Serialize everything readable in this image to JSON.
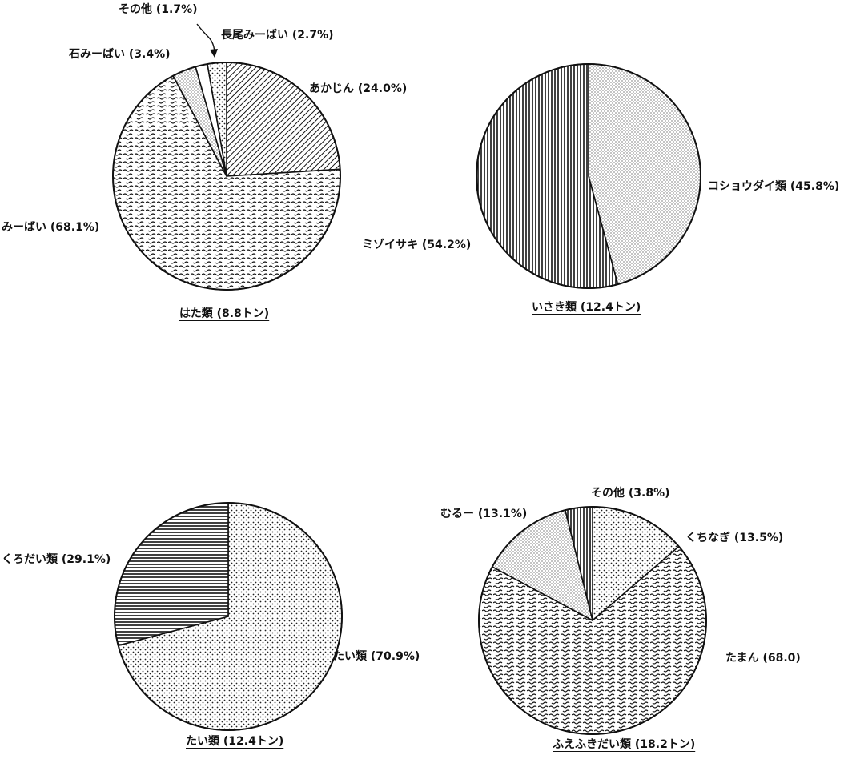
{
  "chart_data": [
    {
      "type": "pie",
      "title": "はた類 (8.8トン)",
      "slices": [
        {
          "label": "あかじん (24.0%)",
          "value": 24.0,
          "pattern": "diag"
        },
        {
          "label": "みーばい (68.1%)",
          "value": 68.1,
          "pattern": "squiggle"
        },
        {
          "label": "石みーばい (3.4%)",
          "value": 3.4,
          "pattern": "dots-fine"
        },
        {
          "label": "その他 (1.7%)",
          "value": 1.7,
          "pattern": "white"
        },
        {
          "label": "長尾みーばい (2.7%)",
          "value": 2.7,
          "pattern": "dots"
        }
      ]
    },
    {
      "type": "pie",
      "title": "いさき類 (12.4トン)",
      "slices": [
        {
          "label": "コショウダイ類 (45.8%)",
          "value": 45.8,
          "pattern": "dots-fine"
        },
        {
          "label": "ミゾイサキ (54.2%)",
          "value": 54.2,
          "pattern": "vertical"
        }
      ]
    },
    {
      "type": "pie",
      "title": "たい類 (12.4トン)",
      "slices": [
        {
          "label": "たい類 (70.9%)",
          "value": 70.9,
          "pattern": "dots"
        },
        {
          "label": "くろだい類 (29.1%)",
          "value": 29.1,
          "pattern": "horizontal"
        }
      ]
    },
    {
      "type": "pie",
      "title": "ふえふきだい類 (18.2トン)",
      "slices": [
        {
          "label": "くちなぎ (13.5%)",
          "value": 13.5,
          "pattern": "dots"
        },
        {
          "label": "たまん (68.0)",
          "value": 68.0,
          "pattern": "squiggle"
        },
        {
          "label": "むるー (13.1%)",
          "value": 13.1,
          "pattern": "dots-fine"
        },
        {
          "label": "その他 (3.8%)",
          "value": 3.8,
          "pattern": "vertical"
        }
      ]
    }
  ]
}
